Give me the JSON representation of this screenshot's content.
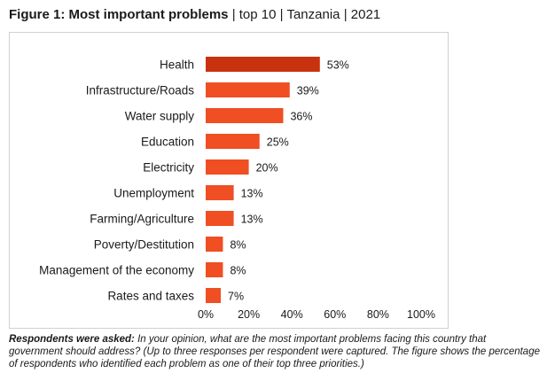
{
  "header": {
    "title_bold": "Figure 1: Most important problems",
    "sep1": "|",
    "subtitle1": "top 10",
    "sep2": "|",
    "subtitle2": "Tanzania",
    "sep3": "|",
    "subtitle3": "2021"
  },
  "chart_data": {
    "type": "bar",
    "orientation": "horizontal",
    "categories": [
      "Health",
      "Infrastructure/Roads",
      "Water supply",
      "Education",
      "Electricity",
      "Unemployment",
      "Farming/Agriculture",
      "Poverty/Destitution",
      "Management of the economy",
      "Rates and taxes"
    ],
    "values": [
      53,
      39,
      36,
      25,
      20,
      13,
      13,
      8,
      8,
      7
    ],
    "value_labels": [
      "53%",
      "39%",
      "36%",
      "25%",
      "20%",
      "13%",
      "13%",
      "8%",
      "8%",
      "7%"
    ],
    "xlim": [
      0,
      100
    ],
    "xticks": [
      0,
      20,
      40,
      60,
      80,
      100
    ],
    "xtick_labels": [
      "0%",
      "20%",
      "40%",
      "60%",
      "80%",
      "100%"
    ],
    "grid": false,
    "highlight_index": 0,
    "colors": {
      "highlight": "#c8320f",
      "bar": "#f04e23"
    }
  },
  "footnote": {
    "lead": "Respondents were asked:",
    "question": " In your opinion, what are the most important problems facing this country that government should address? (Up to three responses per respondent were captured. The figure shows the percentage of respondents who identified each problem as one of their top three priorities.)"
  }
}
